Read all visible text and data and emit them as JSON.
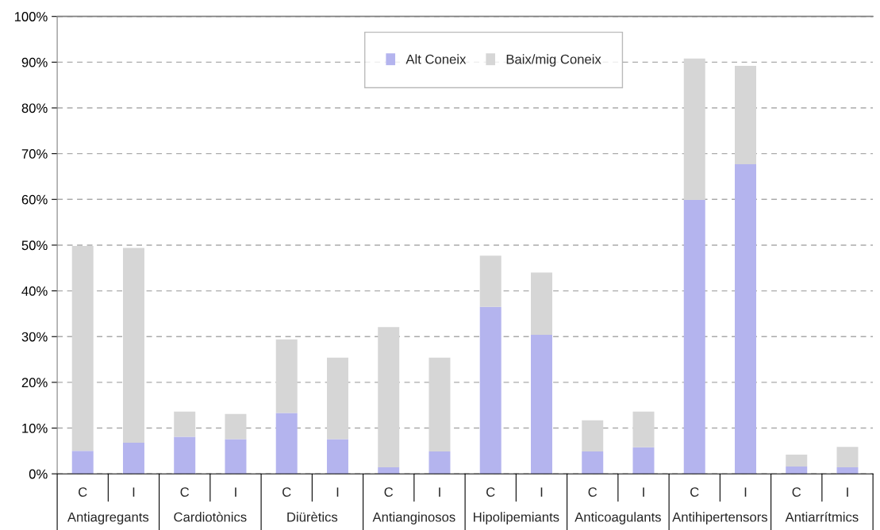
{
  "chart_data": {
    "type": "bar",
    "stacked": true,
    "categories": [
      "C",
      "I",
      "C",
      "I",
      "C",
      "I",
      "C",
      "I",
      "C",
      "I",
      "C",
      "I",
      "C",
      "I",
      "C",
      "I"
    ],
    "series": [
      {
        "name": "Alt Coneix",
        "color": "#b4b4ee",
        "values": [
          5.0,
          6.8,
          8.1,
          7.6,
          13.3,
          7.6,
          1.4,
          4.9,
          36.5,
          30.4,
          4.9,
          5.8,
          59.9,
          67.7,
          1.6,
          1.4
        ]
      },
      {
        "name": "Baix/mig Coneix",
        "color": "#d6d6d6",
        "values": [
          44.8,
          42.6,
          5.5,
          5.5,
          16.1,
          17.8,
          30.7,
          20.5,
          11.2,
          13.6,
          6.8,
          7.8,
          30.9,
          21.5,
          2.6,
          4.5
        ]
      }
    ],
    "annotations": [
      "Antiagregants",
      "Cardiotònics",
      "Diürètics",
      "Antianginosos",
      "Hipolipemiants",
      "Anticoagulants",
      "Antihipertensors",
      "Antiarrítmics"
    ],
    "ylim": [
      0,
      100
    ],
    "yticks": [
      {
        "value": 0,
        "label": "0%"
      },
      {
        "value": 10,
        "label": "10%"
      },
      {
        "value": 20,
        "label": "20%"
      },
      {
        "value": 30,
        "label": "30%"
      },
      {
        "value": 40,
        "label": "40%"
      },
      {
        "value": 50,
        "label": "50%"
      },
      {
        "value": 60,
        "label": "60%"
      },
      {
        "value": 70,
        "label": "70%"
      },
      {
        "value": 80,
        "label": "80%"
      },
      {
        "value": 90,
        "label": "90%"
      },
      {
        "value": 100,
        "label": "100%"
      }
    ],
    "grid": "y",
    "legend": "top"
  }
}
